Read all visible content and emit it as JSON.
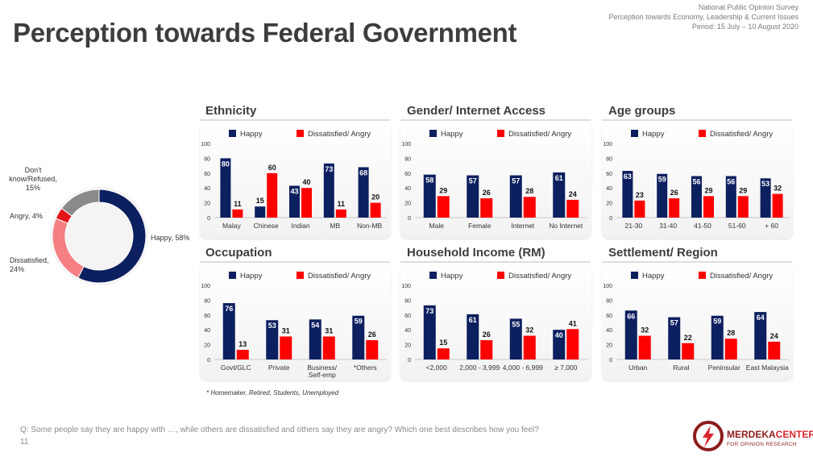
{
  "header": {
    "survey_name": "National Public Opinion Survey",
    "survey_topic": "Perception towards Economy, Leadership & Current Issues",
    "survey_period": "Period: 15 July – 10 August 2020"
  },
  "page_title": "Perception towards Federal Government",
  "colors": {
    "happy": "#0c1f5f",
    "dissatisfied_angry": "#ff0000",
    "pie_happy": "#0c1f5f",
    "pie_dissatisfied": "#f48083",
    "pie_angry": "#e4141b",
    "pie_dont_know": "#8a8a8a"
  },
  "legend": {
    "happy": "Happy",
    "dissatisfied": "Dissatisfied/ Angry"
  },
  "footnote": "* Homemaker, Retired, Students, Unemployed",
  "question": "Q: Some people say they are happy with …, while others are dissatisfied and others say they are angry? Which one best describes how you feel?",
  "page_number": "11",
  "logo": {
    "name_part1": "MERDEKA",
    "name_part2": "CENTER",
    "tagline": "FOR OPINION RESEARCH"
  },
  "chart_data": [
    {
      "type": "pie",
      "variant": "donut",
      "labels": [
        "Happy, 58%",
        "Dissatisfied, 24%",
        "Angry, 4%",
        "Don't know/Refused, 15%"
      ],
      "values": [
        58,
        24,
        4,
        15
      ]
    },
    {
      "type": "bar",
      "title": "Ethnicity",
      "ylim": [
        0,
        100
      ],
      "yticks": [
        "0",
        "20",
        "40",
        "60",
        "80",
        "100"
      ],
      "categories": [
        "Malay",
        "Chinese",
        "Indian",
        "MB",
        "Non-MB"
      ],
      "series": [
        {
          "name": "Happy",
          "values": [
            80,
            15,
            43,
            73,
            68
          ]
        },
        {
          "name": "Dissatisfied/ Angry",
          "values": [
            11,
            60,
            40,
            11,
            20
          ]
        }
      ]
    },
    {
      "type": "bar",
      "title": "Gender/ Internet Access",
      "ylim": [
        0,
        100
      ],
      "yticks": [
        "0",
        "20",
        "40",
        "60",
        "80",
        "100"
      ],
      "categories": [
        "Male",
        "Female",
        "Internet",
        "No Internet"
      ],
      "series": [
        {
          "name": "Happy",
          "values": [
            58,
            57,
            57,
            61
          ]
        },
        {
          "name": "Dissatisfied/ Angry",
          "values": [
            29,
            26,
            28,
            24
          ]
        }
      ]
    },
    {
      "type": "bar",
      "title": "Age groups",
      "ylim": [
        0,
        100
      ],
      "yticks": [
        "0",
        "20",
        "40",
        "60",
        "80",
        "100"
      ],
      "categories": [
        "21-30",
        "31-40",
        "41-50",
        "51-60",
        "+ 60"
      ],
      "series": [
        {
          "name": "Happy",
          "values": [
            63,
            59,
            56,
            56,
            53
          ]
        },
        {
          "name": "Dissatisfied/ Angry",
          "values": [
            23,
            26,
            29,
            29,
            32
          ]
        }
      ]
    },
    {
      "type": "bar",
      "title": "Occupation",
      "ylim": [
        0,
        100
      ],
      "yticks": [
        "0",
        "20",
        "40",
        "60",
        "80",
        "100"
      ],
      "categories": [
        "Govt/GLC",
        "Private",
        "Business/\nSelf-emp",
        "*Others"
      ],
      "series": [
        {
          "name": "Happy",
          "values": [
            76,
            53,
            54,
            59
          ]
        },
        {
          "name": "Dissatisfied/ Angry",
          "values": [
            13,
            31,
            31,
            26
          ]
        }
      ]
    },
    {
      "type": "bar",
      "title": "Household Income (RM)",
      "ylim": [
        0,
        100
      ],
      "yticks": [
        "0",
        "20",
        "40",
        "60",
        "80",
        "100"
      ],
      "categories": [
        "<2,000",
        "2,000 - 3,999",
        "4,000 - 6,999",
        "≥ 7,000"
      ],
      "series": [
        {
          "name": "Happy",
          "values": [
            73,
            61,
            55,
            40
          ]
        },
        {
          "name": "Dissatisfied/ Angry",
          "values": [
            15,
            26,
            32,
            41
          ]
        }
      ]
    },
    {
      "type": "bar",
      "title": "Settlement/ Region",
      "ylim": [
        0,
        100
      ],
      "yticks": [
        "0",
        "20",
        "40",
        "60",
        "80",
        "100"
      ],
      "categories": [
        "Urban",
        "Rural",
        "Peninsular",
        "East Malaysia"
      ],
      "series": [
        {
          "name": "Happy",
          "values": [
            66,
            57,
            59,
            64
          ]
        },
        {
          "name": "Dissatisfied/ Angry",
          "values": [
            32,
            22,
            28,
            24
          ]
        }
      ]
    }
  ]
}
